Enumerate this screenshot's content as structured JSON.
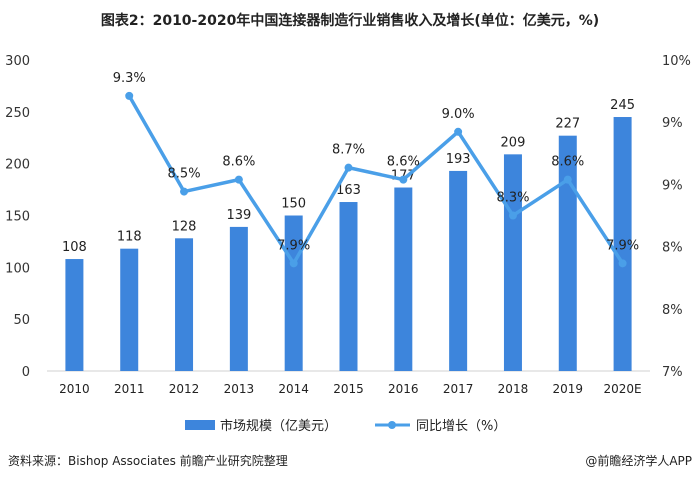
{
  "title": "图表2：2010-2020年中国连接器制造行业销售收入及增长(单位：亿美元，%)",
  "source": "资料来源：Bishop Associates 前瞻产业研究院整理",
  "credit": "@前瞻经济学人APP",
  "chart_data": {
    "type": "bar+line",
    "categories": [
      "2010",
      "2011",
      "2012",
      "2013",
      "2014",
      "2015",
      "2016",
      "2017",
      "2018",
      "2019",
      "2020E"
    ],
    "series": [
      {
        "name": "市场规模（亿美元）",
        "type": "bar",
        "axis": "left",
        "color": "#3d85dc",
        "values": [
          108,
          118,
          128,
          139,
          150,
          163,
          177,
          193,
          209,
          227,
          245
        ]
      },
      {
        "name": "同比增长（%）",
        "type": "line",
        "axis": "right",
        "color": "#4a9fe8",
        "values": [
          null,
          9.3,
          8.5,
          8.6,
          7.9,
          8.7,
          8.6,
          9.0,
          8.3,
          8.6,
          7.9
        ],
        "labels": [
          "",
          "9.3%",
          "8.5%",
          "8.6%",
          "7.9%",
          "8.7%",
          "8.6%",
          "9.0%",
          "8.3%",
          "8.6%",
          "7.9%"
        ]
      }
    ],
    "left_axis": {
      "ylim": [
        0,
        300
      ],
      "ticks": [
        "0",
        "50",
        "100",
        "150",
        "200",
        "250",
        "300"
      ]
    },
    "right_axis": {
      "ylim": [
        7.0,
        9.6
      ],
      "ticks": [
        "7%",
        "8%",
        "8%",
        "9%",
        "9%",
        "10%"
      ]
    },
    "grid": false,
    "legend": "bottom"
  }
}
